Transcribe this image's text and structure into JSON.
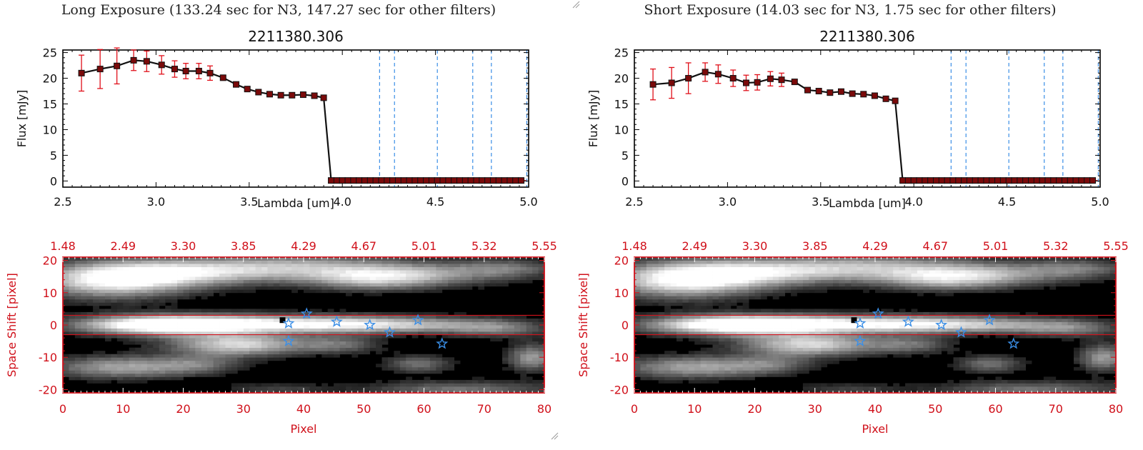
{
  "window": {
    "panels": [
      {
        "id": "long",
        "header": "Long Exposure (133.24 sec for N3, 147.27 sec for other filters)",
        "spectrum": {
          "title": "2211380.306",
          "xlabel": "Lambda [um]",
          "ylabel": "Flux [mJy]",
          "xlim": [
            2.5,
            5.0
          ],
          "ylim": [
            0,
            25
          ],
          "xticks": [
            "2.5",
            "3.0",
            "3.5",
            "4.0",
            "4.5",
            "5.0"
          ],
          "yticks": [
            "0",
            "5",
            "10",
            "15",
            "20",
            "25"
          ]
        },
        "image2d": {
          "xlabel": "Pixel",
          "ylabel": "Space Shift [pixel]",
          "xlim": [
            0,
            80
          ],
          "ylim": [
            -21,
            21
          ],
          "xticks": [
            "0",
            "10",
            "20",
            "30",
            "40",
            "50",
            "60",
            "70",
            "80"
          ],
          "yticks": [
            "-20",
            "-10",
            "0",
            "10",
            "20"
          ],
          "top_wavelength_ticks": [
            "1.48",
            "2.49",
            "3.30",
            "3.85",
            "4.29",
            "4.67",
            "5.01",
            "5.32",
            "5.55"
          ]
        }
      },
      {
        "id": "short",
        "header": "Short Exposure (14.03 sec for N3, 1.75 sec for other filters)",
        "spectrum": {
          "title": "2211380.306",
          "xlabel": "Lambda [um]",
          "ylabel": "Flux [mJy]",
          "xlim": [
            2.5,
            5.0
          ],
          "ylim": [
            0,
            25
          ],
          "xticks": [
            "2.5",
            "3.0",
            "3.5",
            "4.0",
            "4.5",
            "5.0"
          ],
          "yticks": [
            "0",
            "5",
            "10",
            "15",
            "20",
            "25"
          ]
        },
        "image2d": {
          "xlabel": "Pixel",
          "ylabel": "Space Shift [pixel]",
          "xlim": [
            0,
            80
          ],
          "ylim": [
            -21,
            21
          ],
          "xticks": [
            "0",
            "10",
            "20",
            "30",
            "40",
            "50",
            "60",
            "70",
            "80"
          ],
          "yticks": [
            "-20",
            "-10",
            "0",
            "10",
            "20"
          ],
          "top_wavelength_ticks": [
            "1.48",
            "2.49",
            "3.30",
            "3.85",
            "4.29",
            "4.67",
            "5.01",
            "5.32",
            "5.55"
          ]
        }
      }
    ]
  },
  "colors": {
    "axis_black": "#000000",
    "axis_red": "#d0101a",
    "errorbar": "#e0101a",
    "marker": "#7a0a0a",
    "filter_line": "#3a8ee6",
    "star": "#3a8ee6",
    "aperture_line": "#d0101a"
  },
  "chart_data": [
    {
      "type": "line",
      "title": "2211380.306",
      "xlabel": "Lambda [um]",
      "ylabel": "Flux [mJy]",
      "xlim": [
        2.5,
        5.0
      ],
      "ylim": [
        0,
        25
      ],
      "grid": false,
      "series": [
        {
          "x": [
            2.6,
            2.7,
            2.79,
            2.88,
            2.95,
            3.03,
            3.1,
            3.16,
            3.23,
            3.29,
            3.36,
            3.43,
            3.49,
            3.55,
            3.61,
            3.67,
            3.73,
            3.79,
            3.85,
            3.9,
            3.94,
            3.97,
            4.0,
            4.03,
            4.06,
            4.09,
            4.12,
            4.15,
            4.18,
            4.21,
            4.24,
            4.27,
            4.3,
            4.33,
            4.36,
            4.39,
            4.42,
            4.45,
            4.48,
            4.51,
            4.54,
            4.57,
            4.6,
            4.63,
            4.66,
            4.69,
            4.72,
            4.75,
            4.78,
            4.81,
            4.84,
            4.87,
            4.9,
            4.93,
            4.96
          ],
          "y": [
            21.0,
            21.8,
            22.4,
            23.5,
            23.3,
            22.6,
            21.8,
            21.4,
            21.4,
            21.0,
            20.1,
            18.8,
            17.9,
            17.3,
            16.9,
            16.7,
            16.7,
            16.8,
            16.6,
            16.2,
            0.1,
            0.1,
            0.1,
            0.1,
            0.1,
            0.1,
            0.1,
            0.1,
            0.1,
            0.1,
            0.1,
            0.1,
            0.1,
            0.1,
            0.1,
            0.1,
            0.1,
            0.1,
            0.1,
            0.1,
            0.1,
            0.1,
            0.1,
            0.1,
            0.1,
            0.1,
            0.1,
            0.1,
            0.1,
            0.1,
            0.1,
            0.1,
            0.1,
            0.1,
            0.1
          ],
          "yerr": [
            3.5,
            3.8,
            3.5,
            2.0,
            2.0,
            1.8,
            1.6,
            1.5,
            1.5,
            1.4,
            0,
            0,
            0,
            0,
            0,
            0,
            0,
            0,
            0,
            0,
            0,
            0,
            0,
            0,
            0,
            0,
            0,
            0,
            0,
            0,
            0,
            0,
            0,
            0,
            0,
            0,
            0,
            0,
            0,
            0,
            0,
            0,
            0,
            0,
            0,
            0,
            0,
            0,
            0,
            0,
            0,
            0,
            0,
            0,
            0
          ]
        }
      ],
      "filter_lines": [
        4.2,
        4.28,
        4.51,
        4.7,
        4.8,
        4.99
      ]
    },
    {
      "type": "heatmap",
      "xlabel": "Pixel",
      "ylabel": "Space Shift [pixel]",
      "xlim": [
        0,
        80
      ],
      "ylim": [
        -21,
        21
      ],
      "aperture_y": [
        3,
        -3
      ],
      "stars": [
        [
          37.5,
          0.5
        ],
        [
          40.5,
          3.5
        ],
        [
          45.5,
          1.0
        ],
        [
          51.0,
          0.0
        ],
        [
          54.3,
          -2.3
        ],
        [
          59.0,
          1.5
        ],
        [
          37.5,
          -5.0
        ],
        [
          63.0,
          -5.8
        ]
      ]
    },
    {
      "type": "line",
      "title": "2211380.306",
      "xlabel": "Lambda [um]",
      "ylabel": "Flux [mJy]",
      "xlim": [
        2.5,
        5.0
      ],
      "ylim": [
        0,
        25
      ],
      "grid": false,
      "series": [
        {
          "x": [
            2.6,
            2.7,
            2.79,
            2.88,
            2.95,
            3.03,
            3.1,
            3.16,
            3.23,
            3.29,
            3.36,
            3.43,
            3.49,
            3.55,
            3.61,
            3.67,
            3.73,
            3.79,
            3.85,
            3.9,
            3.94,
            3.97,
            4.0,
            4.03,
            4.06,
            4.09,
            4.12,
            4.15,
            4.18,
            4.21,
            4.24,
            4.27,
            4.3,
            4.33,
            4.36,
            4.39,
            4.42,
            4.45,
            4.48,
            4.51,
            4.54,
            4.57,
            4.6,
            4.63,
            4.66,
            4.69,
            4.72,
            4.75,
            4.78,
            4.81,
            4.84,
            4.87,
            4.9,
            4.93,
            4.96
          ],
          "y": [
            18.8,
            19.1,
            20.0,
            21.2,
            20.8,
            20.0,
            19.1,
            19.2,
            19.9,
            19.7,
            19.3,
            17.7,
            17.5,
            17.2,
            17.4,
            17.0,
            16.9,
            16.6,
            16.0,
            15.6,
            0.1,
            0.1,
            0.1,
            0.1,
            0.1,
            0.1,
            0.1,
            0.1,
            0.1,
            0.1,
            0.1,
            0.1,
            0.1,
            0.1,
            0.1,
            0.1,
            0.1,
            0.1,
            0.1,
            0.1,
            0.1,
            0.1,
            0.1,
            0.1,
            0.1,
            0.1,
            0.1,
            0.1,
            0.1,
            0.1,
            0.1,
            0.1,
            0.1,
            0.1,
            0.1
          ],
          "yerr": [
            3.0,
            3.0,
            3.0,
            1.8,
            1.8,
            1.6,
            1.5,
            1.5,
            1.4,
            1.3,
            0,
            0,
            0,
            0,
            0,
            0,
            0,
            0,
            0,
            0,
            0,
            0,
            0,
            0,
            0,
            0,
            0,
            0,
            0,
            0,
            0,
            0,
            0,
            0,
            0,
            0,
            0,
            0,
            0,
            0,
            0,
            0,
            0,
            0,
            0,
            0,
            0,
            0,
            0,
            0,
            0,
            0,
            0,
            0,
            0
          ]
        }
      ],
      "filter_lines": [
        4.2,
        4.28,
        4.51,
        4.7,
        4.8,
        4.99
      ]
    },
    {
      "type": "heatmap",
      "xlabel": "Pixel",
      "ylabel": "Space Shift [pixel]",
      "xlim": [
        0,
        80
      ],
      "ylim": [
        -21,
        21
      ],
      "aperture_y": [
        3,
        -3
      ],
      "stars": [
        [
          37.5,
          0.5
        ],
        [
          40.5,
          3.5
        ],
        [
          45.5,
          1.0
        ],
        [
          51.0,
          0.0
        ],
        [
          54.3,
          -2.3
        ],
        [
          59.0,
          1.5
        ],
        [
          37.5,
          -5.0
        ],
        [
          63.0,
          -5.8
        ]
      ]
    }
  ]
}
